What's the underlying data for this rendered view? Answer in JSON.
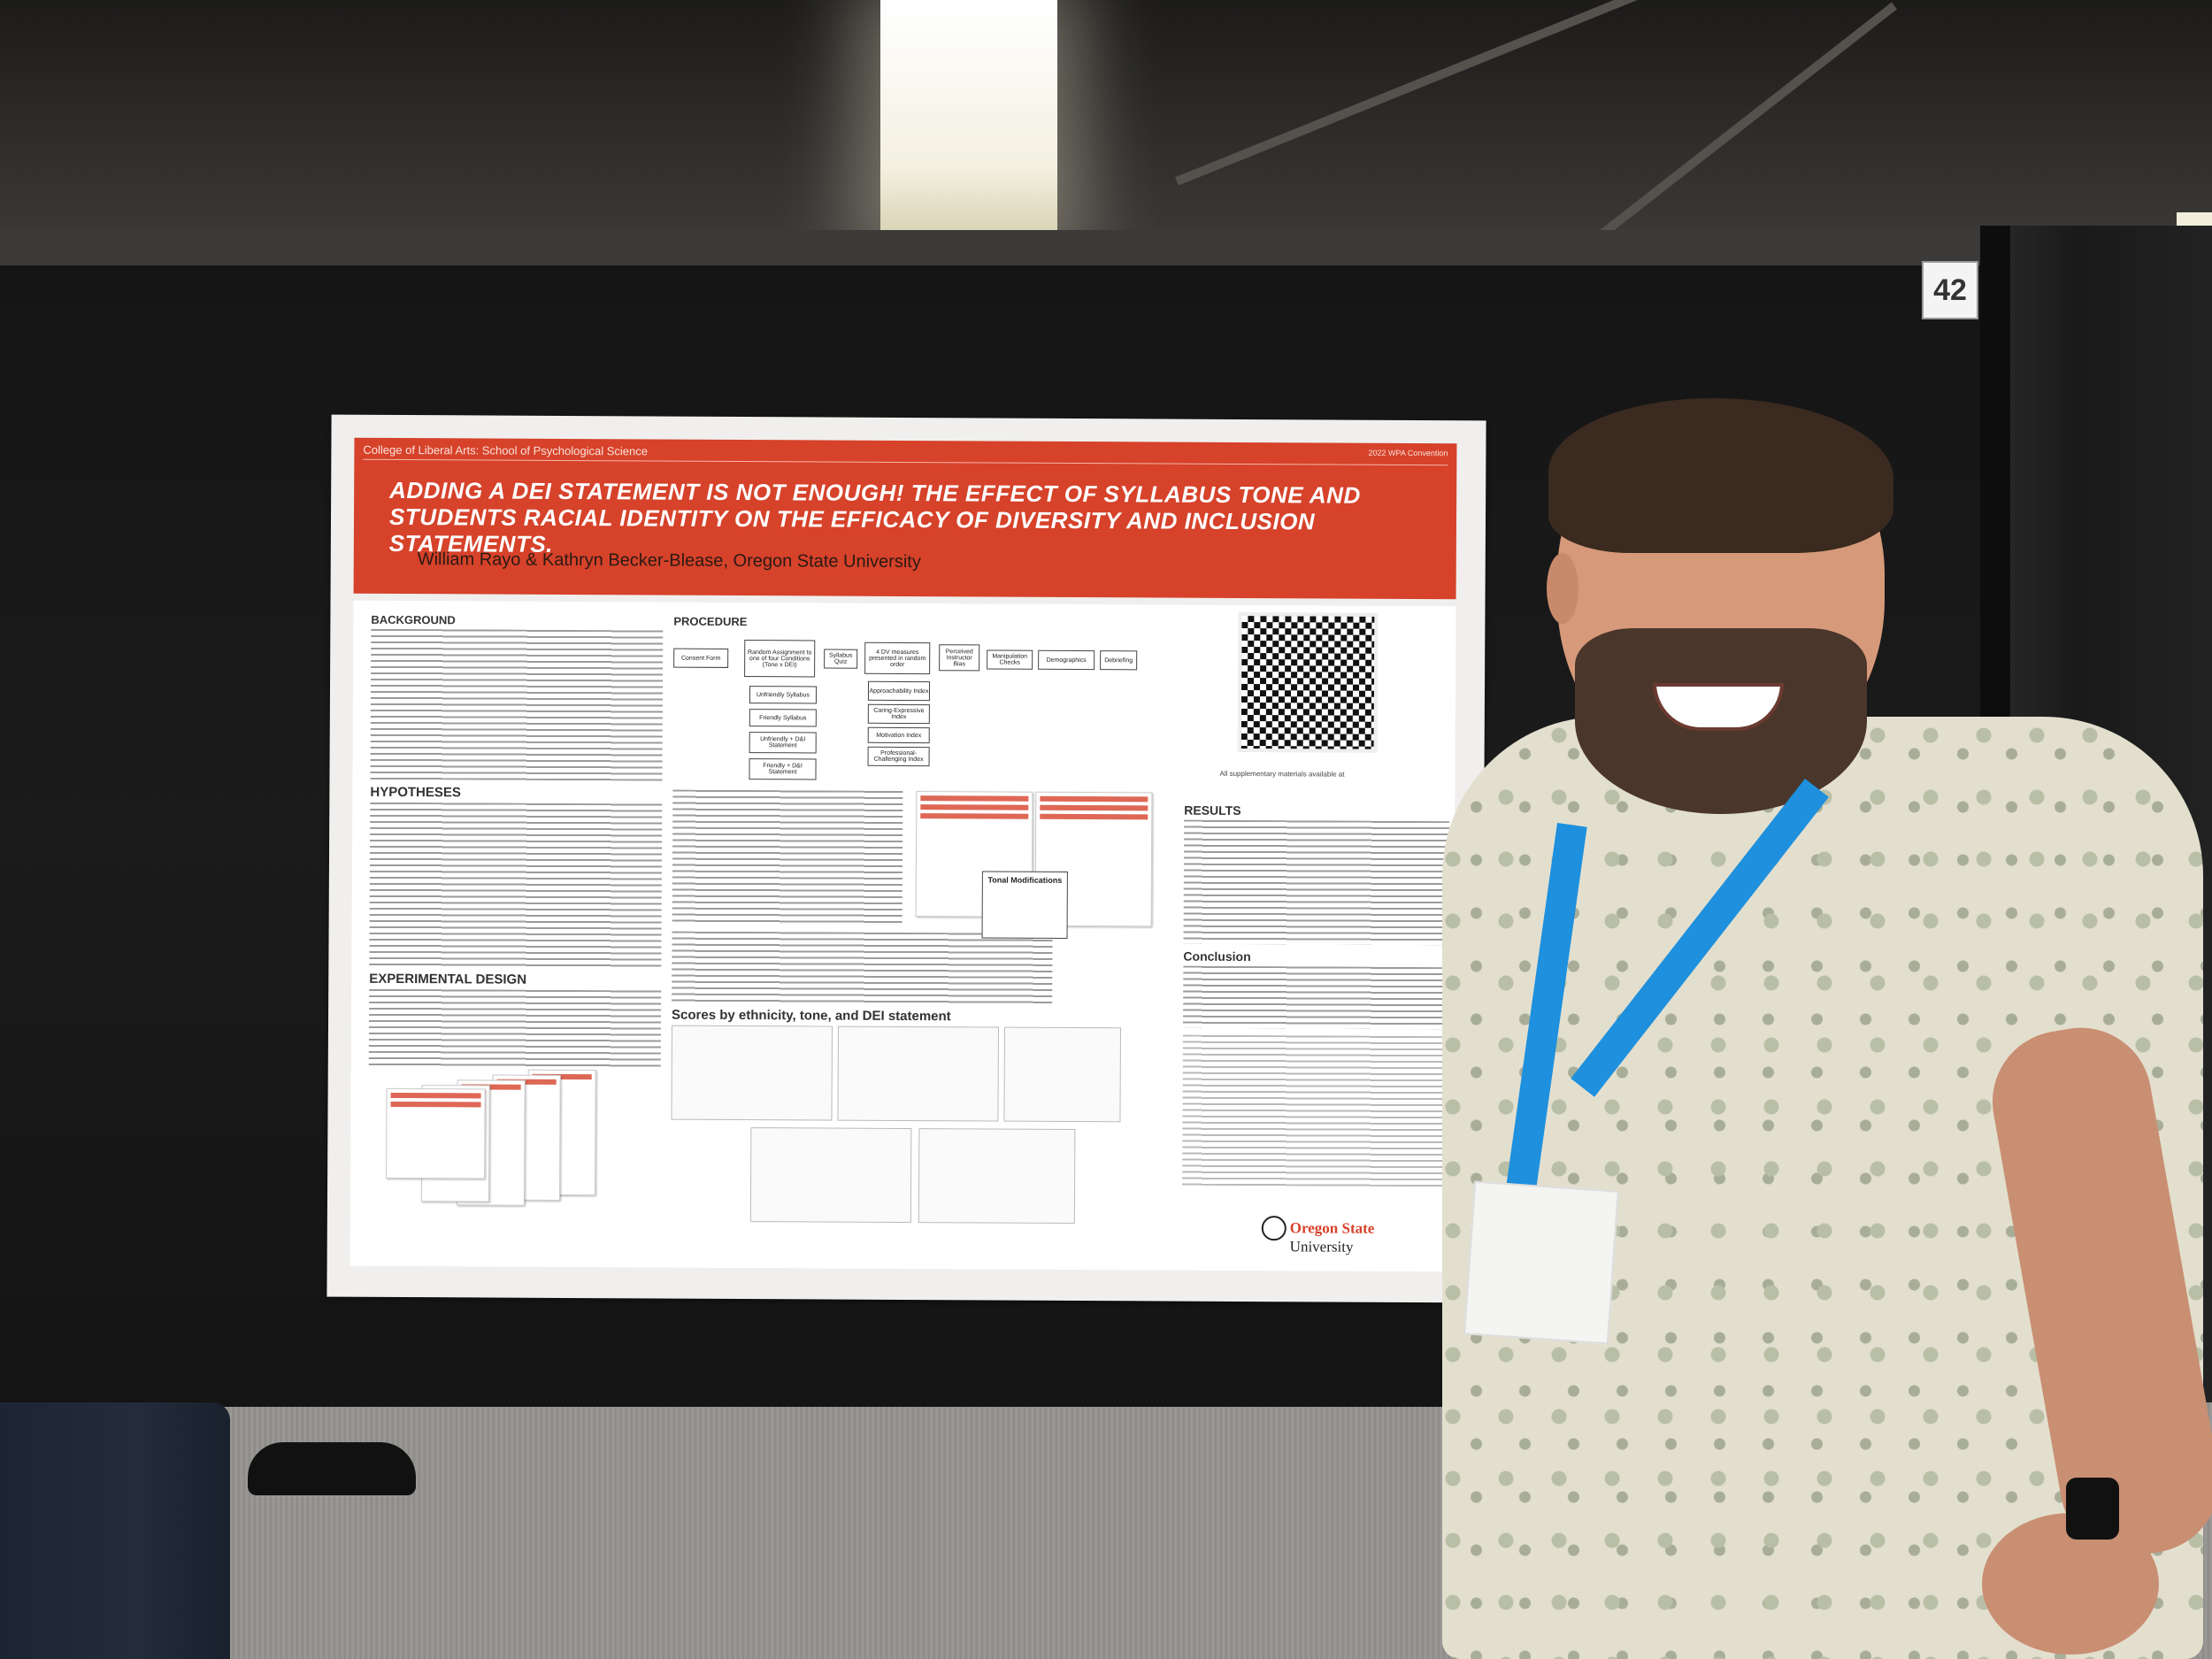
{
  "booth_number": "42",
  "poster": {
    "affiliation": "College of Liberal Arts: School of Psychological Science",
    "conference": "2022 WPA Convention",
    "title": "ADDING A DEI STATEMENT IS NOT ENOUGH! THE EFFECT OF SYLLABUS TONE AND STUDENTS RACIAL IDENTITY ON THE EFFICACY OF DIVERSITY AND INCLUSION STATEMENTS.",
    "authors": "William Rayo & Kathryn Becker-Blease, Oregon State University",
    "sections": {
      "background": "BACKGROUND",
      "hypotheses": "HYPOTHESES",
      "experimental_design": "EXPERIMENTAL DESIGN",
      "procedure": "PROCEDURE",
      "scores_heading": "Scores by ethnicity, tone, and DEI statement",
      "results": "RESULTS",
      "conclusion": "Conclusion",
      "tonal_modifications": "Tonal Modifications"
    },
    "procedure_steps": [
      "Consent Form",
      "Random Assignment to one of four Conditions (Tone x DEI)",
      "Syllabus Quiz",
      "4 DV measures presented in random order",
      "Perceived Instructor Bias",
      "Manipulation Checks",
      "Demographics",
      "Debriefing"
    ],
    "conditions": [
      "Unfriendly Syllabus",
      "Friendly Syllabus",
      "Unfriendly + D&I Statement",
      "Friendly + D&I Statement"
    ],
    "dv_measures": [
      "Approachability Index",
      "Caring-Expressive Index",
      "Motivation Index",
      "Professional-Challenging Index"
    ],
    "supplementary_note": "All supplementary materials available at",
    "logo_text": "Oregon State",
    "logo_subtext": "University"
  }
}
